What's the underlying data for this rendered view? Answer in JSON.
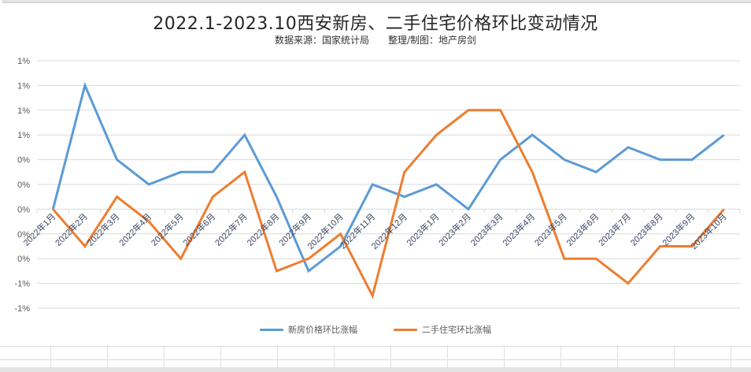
{
  "chart_data": {
    "type": "line",
    "title": "2022.1-2023.10西安新房、二手住宅价格环比变动情况",
    "subtitle": "数据来源：国家统计局　　整理/制图：地产房剑",
    "xlabel": "",
    "ylabel": "",
    "ylim": [
      -0.8,
      1.2
    ],
    "y_ticks": [
      1.2,
      1.0,
      0.8,
      0.6,
      0.4,
      0.2,
      0.0,
      -0.2,
      -0.4,
      -0.6,
      -0.8
    ],
    "y_tick_labels": [
      "1%",
      "1%",
      "1%",
      "1%",
      "0%",
      "0%",
      "0%",
      "0%",
      "0%",
      "-1%",
      "-1%"
    ],
    "grid": true,
    "legend_position": "bottom",
    "categories": [
      "2022年1月",
      "2022年2月",
      "2022年3月",
      "2022年4月",
      "2022年5月",
      "2022年6月",
      "2022年7月",
      "2022年8月",
      "2022年9月",
      "2022年10月",
      "2022年11月",
      "2022年12月",
      "2023年1月",
      "2023年2月",
      "2023年3月",
      "2023年4月",
      "2023年5月",
      "2023年6月",
      "2023年7月",
      "2023年8月",
      "2023年9月",
      "2023年10月"
    ],
    "series": [
      {
        "name": "新房价格环比涨幅",
        "color": "#5B9BD5",
        "values": [
          0.0,
          1.0,
          0.4,
          0.2,
          0.3,
          0.3,
          0.6,
          0.1,
          -0.5,
          -0.3,
          0.2,
          0.1,
          0.2,
          0.0,
          0.4,
          0.6,
          0.4,
          0.3,
          0.5,
          0.4,
          0.4,
          0.6
        ]
      },
      {
        "name": "二手住宅环比涨幅",
        "color": "#ED7D31",
        "values": [
          0.0,
          -0.3,
          0.1,
          -0.1,
          -0.4,
          0.1,
          0.3,
          -0.5,
          -0.4,
          -0.2,
          -0.7,
          0.3,
          0.6,
          0.8,
          0.8,
          0.3,
          -0.4,
          -0.4,
          -0.6,
          -0.3,
          -0.3,
          0.0
        ]
      }
    ]
  },
  "colors": {
    "gridline": "#d9d9d9",
    "axis_text": "#595959",
    "category_text": "#3a4660"
  }
}
